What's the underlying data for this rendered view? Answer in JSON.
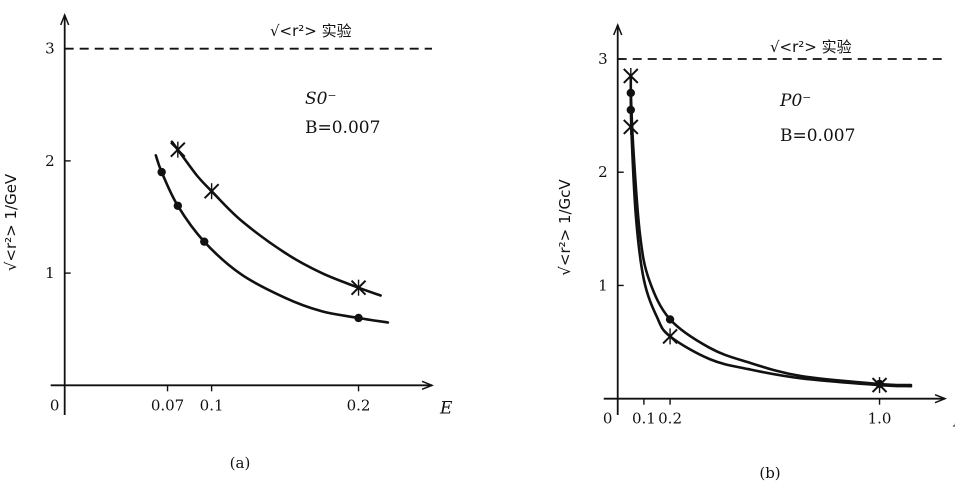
{
  "charts": [
    {
      "panel_label": "(a)",
      "type": "line",
      "xlabel": "E",
      "ylabel": "√<r²> 1/GeV",
      "reference_label": "√<r²> 实验",
      "annotation_state": "S0⁻",
      "annotation_b": "B=0.007",
      "x_ticks": [
        {
          "v": 0,
          "t": "0"
        },
        {
          "v": 0.07,
          "t": "0.07"
        },
        {
          "v": 0.1,
          "t": "0.1"
        },
        {
          "v": 0.2,
          "t": "0.2"
        }
      ],
      "y_ticks": [
        {
          "v": 1,
          "t": "1"
        },
        {
          "v": 2,
          "t": "2"
        },
        {
          "v": 3,
          "t": "3"
        }
      ],
      "xlim": [
        -0.01,
        0.25
      ],
      "ylim": [
        -0.22,
        3.3
      ],
      "reference_value": 3.0,
      "series": [
        {
          "marker": "cross",
          "points": [
            [
              0.077,
              2.1
            ],
            [
              0.1,
              1.73
            ],
            [
              0.2,
              0.87
            ]
          ],
          "curve": [
            [
              0.073,
              2.17
            ],
            [
              0.077,
              2.1
            ],
            [
              0.09,
              1.87
            ],
            [
              0.1,
              1.73
            ],
            [
              0.12,
              1.47
            ],
            [
              0.15,
              1.18
            ],
            [
              0.175,
              1.0
            ],
            [
              0.2,
              0.87
            ],
            [
              0.215,
              0.8
            ]
          ]
        },
        {
          "marker": "dot",
          "points": [
            [
              0.066,
              1.9
            ],
            [
              0.077,
              1.6
            ],
            [
              0.095,
              1.28
            ],
            [
              0.2,
              0.6
            ]
          ],
          "curve": [
            [
              0.062,
              2.05
            ],
            [
              0.066,
              1.9
            ],
            [
              0.077,
              1.6
            ],
            [
              0.095,
              1.28
            ],
            [
              0.12,
              0.99
            ],
            [
              0.15,
              0.78
            ],
            [
              0.175,
              0.66
            ],
            [
              0.2,
              0.6
            ],
            [
              0.22,
              0.56
            ]
          ]
        }
      ]
    },
    {
      "panel_label": "(b)",
      "type": "line",
      "xlabel": "E",
      "ylabel": "√<r²> 1/GcV",
      "reference_label": "√<r²> 实验",
      "annotation_state": "P0⁻",
      "annotation_b": "B=0.007",
      "x_ticks": [
        {
          "v": 0,
          "t": "0"
        },
        {
          "v": 0.1,
          "t": "0.1"
        },
        {
          "v": 0.2,
          "t": "0.2"
        },
        {
          "v": 1.0,
          "t": "1.0"
        }
      ],
      "y_ticks": [
        {
          "v": 1,
          "t": "1"
        },
        {
          "v": 2,
          "t": "2"
        },
        {
          "v": 3,
          "t": "3"
        }
      ],
      "xlim": [
        -0.06,
        1.25
      ],
      "ylim": [
        -0.1,
        3.3
      ],
      "reference_value": 3.0,
      "series": [
        {
          "marker": "cross",
          "points": [
            [
              0.05,
              2.85
            ],
            [
              0.05,
              2.4
            ],
            [
              0.2,
              0.55
            ],
            [
              1.0,
              0.12
            ]
          ],
          "curve": [
            [
              0.05,
              2.85
            ],
            [
              0.052,
              2.4
            ],
            [
              0.07,
              1.6
            ],
            [
              0.1,
              1.05
            ],
            [
              0.15,
              0.72
            ],
            [
              0.2,
              0.55
            ],
            [
              0.35,
              0.35
            ],
            [
              0.5,
              0.26
            ],
            [
              0.7,
              0.18
            ],
            [
              1.0,
              0.12
            ],
            [
              1.12,
              0.11
            ]
          ]
        },
        {
          "marker": "dot",
          "points": [
            [
              0.05,
              2.7
            ],
            [
              0.05,
              2.55
            ],
            [
              0.2,
              0.7
            ],
            [
              1.0,
              0.13
            ]
          ],
          "curve": [
            [
              0.05,
              2.7
            ],
            [
              0.06,
              2.2
            ],
            [
              0.085,
              1.45
            ],
            [
              0.12,
              1.05
            ],
            [
              0.2,
              0.7
            ],
            [
              0.35,
              0.45
            ],
            [
              0.5,
              0.32
            ],
            [
              0.7,
              0.2
            ],
            [
              1.0,
              0.13
            ],
            [
              1.12,
              0.12
            ]
          ]
        }
      ]
    }
  ]
}
